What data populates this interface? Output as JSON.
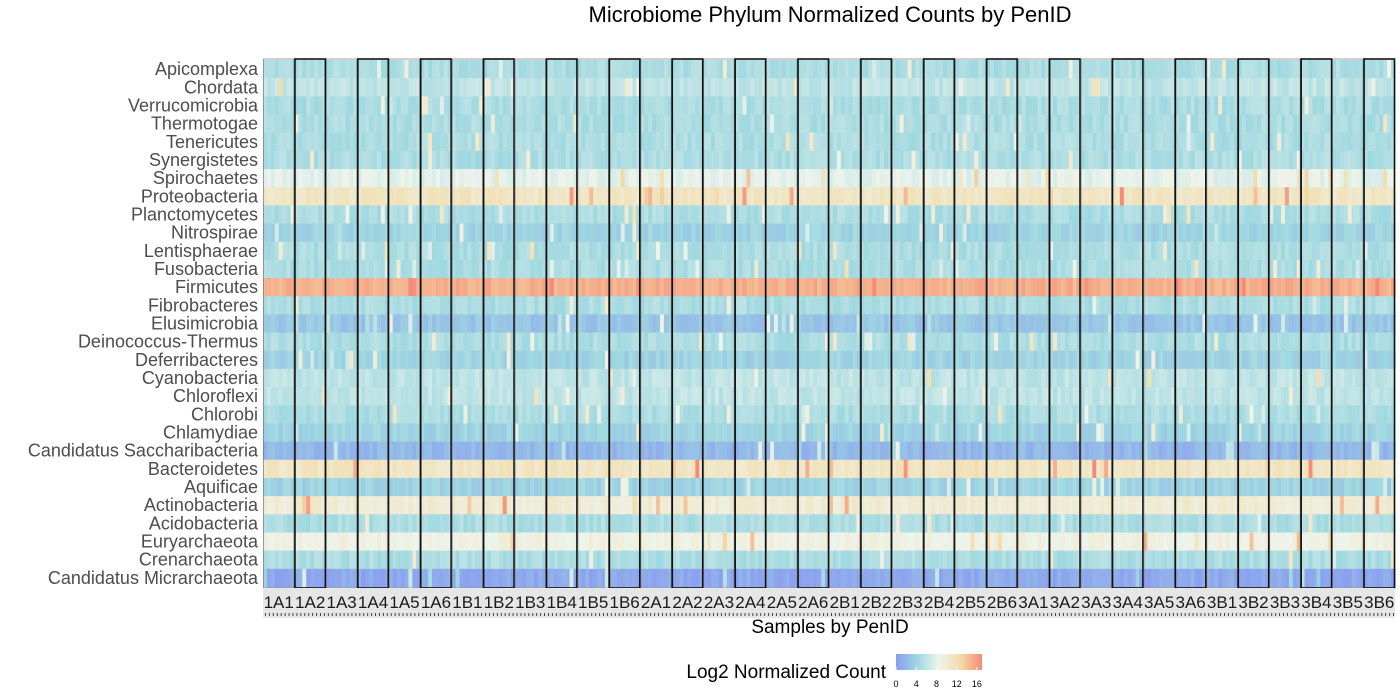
{
  "chart_data": {
    "type": "heatmap",
    "title": "Microbiome Phylum Normalized Counts by PenID",
    "xlabel": "Samples by PenID",
    "ylabel": "",
    "legend": {
      "title": "Log2 Normalized Count",
      "ticks": [
        0,
        4,
        8,
        12,
        16
      ],
      "range": [
        0,
        17
      ],
      "placement": "bottom"
    },
    "colorscale": [
      "#8a9cf0",
      "#9fd8e0",
      "#eef4ec",
      "#f2dba8",
      "#f58a78"
    ],
    "rows": [
      "Apicomplexa",
      "Chordata",
      "Verrucomicrobia",
      "Thermotogae",
      "Tenericutes",
      "Synergistetes",
      "Spirochaetes",
      "Proteobacteria",
      "Planctomycetes",
      "Nitrospirae",
      "Lentisphaerae",
      "Fusobacteria",
      "Firmicutes",
      "Fibrobacteres",
      "Elusimicrobia",
      "Deinococcus-Thermus",
      "Deferribacteres",
      "Cyanobacteria",
      "Chloroflexi",
      "Chlorobi",
      "Chlamydiae",
      "Candidatus Saccharibacteria",
      "Bacteroidetes",
      "Aquificae",
      "Actinobacteria",
      "Acidobacteria",
      "Euryarchaeota",
      "Crenarchaeota",
      "Candidatus Micrarchaeota"
    ],
    "row_mean_log2": [
      5,
      6,
      5,
      5,
      5,
      5,
      8,
      11,
      5,
      4,
      5,
      5,
      15,
      5,
      3,
      5,
      4,
      6,
      6,
      5,
      4,
      2,
      11,
      4,
      10,
      5,
      9,
      5,
      1
    ],
    "groups": [
      "1A1",
      "1A2",
      "1A3",
      "1A4",
      "1A5",
      "1A6",
      "1B1",
      "1B2",
      "1B3",
      "1B4",
      "1B5",
      "1B6",
      "2A1",
      "2A2",
      "2A3",
      "2A4",
      "2A5",
      "2A6",
      "2B1",
      "2B2",
      "2B3",
      "2B4",
      "2B5",
      "2B6",
      "3A1",
      "3A2",
      "3A3",
      "3A4",
      "3A5",
      "3A6",
      "3B1",
      "3B2",
      "3B3",
      "3B4",
      "3B5",
      "3B6"
    ],
    "samples_per_group": 8,
    "grid": false
  }
}
